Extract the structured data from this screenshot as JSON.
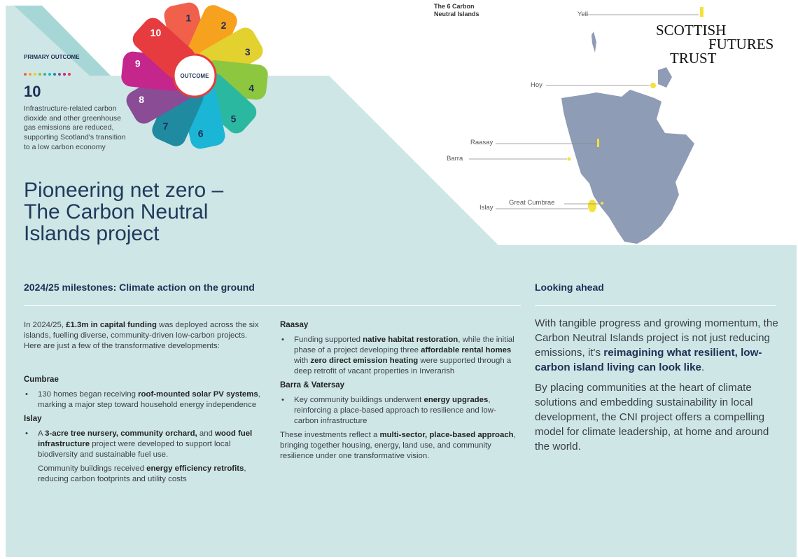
{
  "outcome": {
    "label": "PRIMARY OUTCOME",
    "number": "10",
    "description": "Infrastructure-related carbon dioxide and other greenhouse gas emissions are reduced, supporting Scotland's transition to a low carbon economy",
    "wheel_center": "OUTCOME",
    "petals": [
      {
        "n": "1",
        "color": "#f0604a"
      },
      {
        "n": "2",
        "color": "#f6a21e"
      },
      {
        "n": "3",
        "color": "#e3d12f"
      },
      {
        "n": "4",
        "color": "#8dc63f"
      },
      {
        "n": "5",
        "color": "#2bb8a0"
      },
      {
        "n": "6",
        "color": "#1bb5d6"
      },
      {
        "n": "7",
        "color": "#1f8aa0"
      },
      {
        "n": "8",
        "color": "#8a4c95"
      },
      {
        "n": "9",
        "color": "#c4268c"
      },
      {
        "n": "10",
        "color": "#e63b3f"
      }
    ]
  },
  "title": "Pioneering net zero – The Carbon Neutral Islands project",
  "map": {
    "title": "The 6 Carbon Neutral Islands",
    "labels": [
      "Yell",
      "Hoy",
      "Raasay",
      "Barra",
      "Great Cumbrae",
      "Islay"
    ],
    "land_color": "#8e9cb5",
    "island_color": "#f2e23a"
  },
  "logo": {
    "line1": "SCOTTISH",
    "line2": "FUTURES",
    "line3": "TRUST"
  },
  "milestones": {
    "heading": "2024/25 milestones: Climate action on the ground",
    "intro": [
      {
        "t": "In 2024/25, "
      },
      {
        "t": "£1.3m in capital funding",
        "b": true
      },
      {
        "t": " was deployed across the six islands, fuelling diverse, community-driven low-carbon projects. Here are just a few of the transformative developments:"
      }
    ],
    "sections": [
      {
        "heading": "Cumbrae",
        "paras": [
          {
            "bullet": true,
            "segs": [
              {
                "t": "130 homes began receiving "
              },
              {
                "t": "roof-mounted solar PV systems",
                "b": true
              },
              {
                "t": ", marking a major step toward household energy independence"
              }
            ]
          }
        ]
      },
      {
        "heading": "Islay",
        "paras": [
          {
            "bullet": true,
            "segs": [
              {
                "t": "A "
              },
              {
                "t": "3-acre tree nursery, community orchard,",
                "b": true
              },
              {
                "t": " and "
              },
              {
                "t": "wood fuel infrastructure",
                "b": true
              },
              {
                "t": " project were developed to support local biodiversity and sustainable fuel use."
              }
            ]
          },
          {
            "bullet": false,
            "segs": [
              {
                "t": "Community buildings received "
              },
              {
                "t": "energy efficiency retrofits",
                "b": true
              },
              {
                "t": ", reducing carbon footprints and utility costs"
              }
            ]
          }
        ]
      },
      {
        "heading": "Raasay",
        "paras": [
          {
            "bullet": true,
            "segs": [
              {
                "t": "Funding supported "
              },
              {
                "t": "native habitat restoration",
                "b": true
              },
              {
                "t": ", while the initial phase of a project developing three "
              },
              {
                "t": "affordable rental homes",
                "b": true
              },
              {
                "t": " with "
              },
              {
                "t": "zero direct emission heating",
                "b": true
              },
              {
                "t": " were supported through a deep retrofit of vacant properties in Inverarish"
              }
            ]
          }
        ]
      },
      {
        "heading": "Barra & Vatersay",
        "paras": [
          {
            "bullet": true,
            "segs": [
              {
                "t": "Key community buildings underwent "
              },
              {
                "t": "energy upgrades",
                "b": true
              },
              {
                "t": ", reinforcing a place-based approach to resilience and low-carbon infrastructure"
              }
            ]
          }
        ]
      }
    ],
    "closing": [
      {
        "t": "These investments reflect a "
      },
      {
        "t": "multi-sector, place-based approach",
        "b": true
      },
      {
        "t": ", bringing together housing, energy, land use, and community resilience under one transformative vision."
      }
    ]
  },
  "looking_ahead": {
    "heading": "Looking ahead",
    "paras": [
      [
        {
          "t": "With tangible progress and growing momentum, the Carbon Neutral Islands project is not just reducing emissions, it's "
        },
        {
          "t": "reimagining what resilient, low-carbon island living can look like",
          "b": true
        },
        {
          "t": "."
        }
      ],
      [
        {
          "t": "By placing communities at the heart of climate solutions and embedding sustainability in local development, the CNI project offers a compelling model for climate leadership, at home and around the world."
        }
      ]
    ]
  }
}
